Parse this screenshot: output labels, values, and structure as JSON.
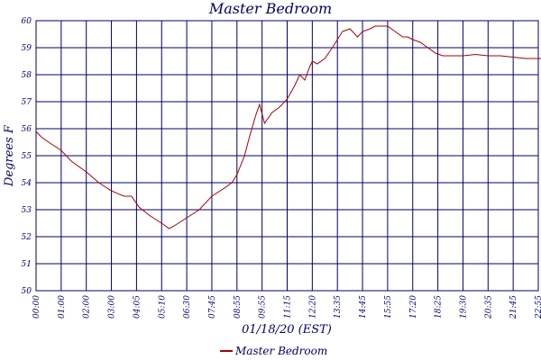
{
  "chart_data": {
    "type": "line",
    "title": "Master Bedroom",
    "xlabel": "01/18/20 (EST)",
    "ylabel": "Degrees F",
    "y_tick_labels": [
      "50",
      "51",
      "52",
      "53",
      "54",
      "55",
      "56",
      "57",
      "58",
      "59",
      "60"
    ],
    "ylim": [
      50,
      60
    ],
    "x_tick_labels": [
      "00:00",
      "01:00",
      "02:00",
      "03:00",
      "04:05",
      "05:10",
      "06:30",
      "07:45",
      "08:55",
      "09:55",
      "11:15",
      "12:20",
      "13:35",
      "14:45",
      "15:55",
      "17:20",
      "18:25",
      "19:30",
      "20:35",
      "21:45",
      "22:55"
    ],
    "grid": true,
    "legend_position": "bottom",
    "series": [
      {
        "name": "Master Bedroom",
        "color": "#aa0000",
        "x": [
          0,
          0.2,
          0.5,
          1.0,
          1.4,
          2.0,
          2.5,
          3.0,
          3.5,
          3.8,
          4.1,
          4.5,
          5.0,
          5.3,
          5.5,
          6.0,
          6.5,
          7.0,
          7.5,
          7.8,
          8.0,
          8.3,
          8.5,
          8.75,
          8.9,
          9.1,
          9.4,
          9.7,
          10.0,
          10.3,
          10.5,
          10.7,
          10.9,
          11.0,
          11.2,
          11.5,
          11.8,
          12.0,
          12.2,
          12.5,
          12.8,
          13.0,
          13.3,
          13.5,
          13.8,
          14.0,
          14.3,
          14.6,
          14.8,
          15.0,
          15.3,
          15.6,
          15.9,
          16.2,
          16.5,
          17.0,
          17.5,
          18.0,
          18.5,
          19.0,
          19.5,
          20.0,
          20.5,
          21.0,
          21.3,
          21.5,
          22.0,
          22.5,
          23.0
        ],
        "y": [
          55.9,
          55.7,
          55.5,
          55.2,
          54.8,
          54.4,
          54.0,
          53.7,
          53.5,
          53.5,
          53.1,
          52.8,
          52.5,
          52.3,
          52.4,
          52.7,
          53.0,
          53.5,
          53.8,
          54.0,
          54.3,
          55.0,
          55.7,
          56.5,
          56.9,
          56.2,
          56.6,
          56.8,
          57.1,
          57.6,
          58.0,
          57.8,
          58.3,
          58.5,
          58.4,
          58.6,
          59.0,
          59.3,
          59.6,
          59.7,
          59.4,
          59.6,
          59.7,
          59.8,
          59.8,
          59.8,
          59.6,
          59.4,
          59.4,
          59.3,
          59.2,
          59.0,
          58.8,
          58.7,
          58.7,
          58.7,
          58.75,
          58.7,
          58.7,
          58.65,
          58.6,
          58.6,
          58.6,
          58.55,
          58.5,
          58.6,
          58.6,
          58.55,
          58.5
        ]
      }
    ]
  }
}
